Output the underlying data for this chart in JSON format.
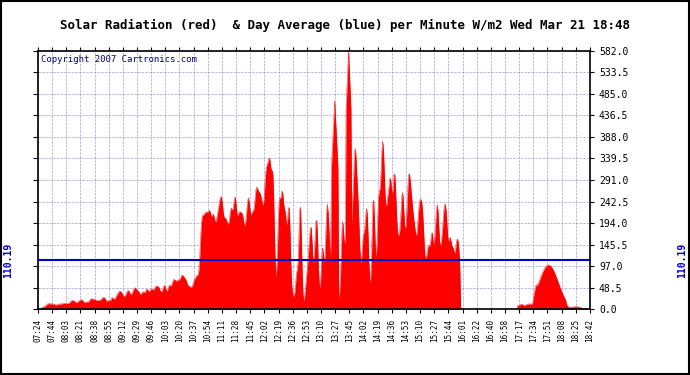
{
  "title": "Solar Radiation (red)  & Day Average (blue) per Minute W/m2 Wed Mar 21 18:48",
  "copyright": "Copyright 2007 Cartronics.com",
  "y_min": 0.0,
  "y_max": 582.0,
  "y_ticks": [
    0.0,
    48.5,
    97.0,
    145.5,
    194.0,
    242.5,
    291.0,
    339.5,
    388.0,
    436.5,
    485.0,
    533.5,
    582.0
  ],
  "avg_value": 110.19,
  "avg_label": "110.19",
  "x_tick_labels": [
    "07:24",
    "07:44",
    "08:03",
    "08:21",
    "08:38",
    "08:55",
    "09:12",
    "09:29",
    "09:46",
    "10:03",
    "10:20",
    "10:37",
    "10:54",
    "11:11",
    "11:28",
    "11:45",
    "12:02",
    "12:19",
    "12:36",
    "12:53",
    "13:10",
    "13:27",
    "13:45",
    "14:02",
    "14:19",
    "14:36",
    "14:53",
    "15:10",
    "15:27",
    "15:44",
    "16:01",
    "16:22",
    "16:40",
    "16:58",
    "17:17",
    "17:34",
    "17:51",
    "18:08",
    "18:25",
    "18:42"
  ],
  "fill_color": "#FF0000",
  "avg_line_color": "#0000CC",
  "bg_color": "#FFFFFF",
  "grid_color": "#8888CC",
  "title_bg": "#C8C8C8",
  "border_color": "#000000",
  "text_color": "#000000",
  "avg_text_color": "#0000CC",
  "radiation_seed": 77,
  "n_points": 680
}
